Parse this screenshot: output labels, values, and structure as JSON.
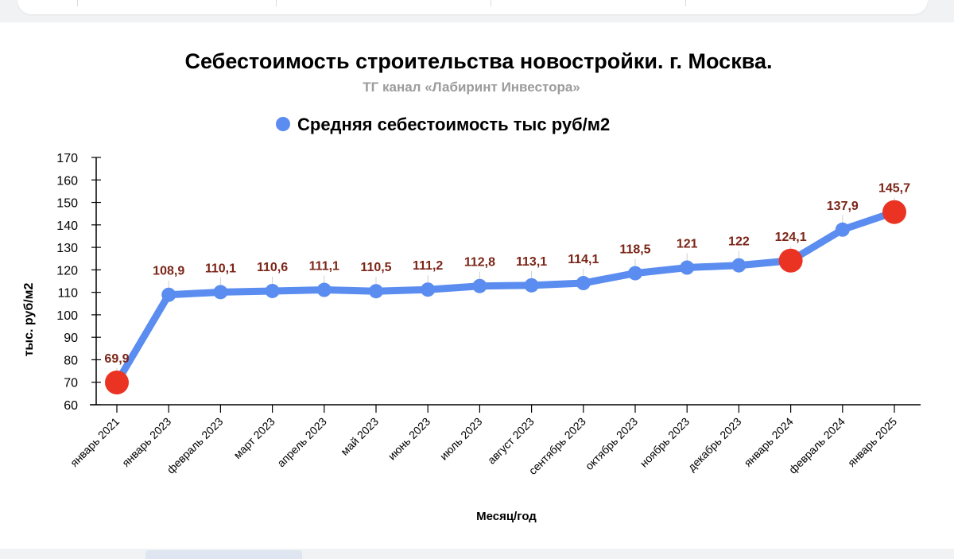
{
  "chart_data": {
    "type": "line",
    "title": "Себестоимость строительства новостройки. г. Москва.",
    "subtitle": "ТГ канал «Лабиринт Инвестора»",
    "xlabel": "Месяц/год",
    "ylabel": "тыс. руб/м2",
    "ylim": [
      60,
      170
    ],
    "y_ticks": [
      60,
      70,
      80,
      90,
      100,
      110,
      120,
      130,
      140,
      150,
      160,
      170
    ],
    "grid": false,
    "legend_position": "top",
    "categories": [
      "январь 2021",
      "январь 2023",
      "февраль 2023",
      "март 2023",
      "апрель 2023",
      "май 2023",
      "июнь 2023",
      "июль 2023",
      "август 2023",
      "сентябрь 2023",
      "октябрь 2023",
      "ноябрь 2023",
      "декабрь 2023",
      "январь 2024",
      "февраль 2024",
      "январь 2025"
    ],
    "series": [
      {
        "name": "Средняя себестоимость тыс руб/м2",
        "values": [
          69.9,
          108.9,
          110.1,
          110.6,
          111.1,
          110.5,
          111.2,
          112.8,
          113.1,
          114.1,
          118.5,
          121,
          122,
          124.1,
          137.9,
          145.7
        ],
        "labels": [
          "69,9",
          "108,9",
          "110,1",
          "110,6",
          "111,1",
          "110,5",
          "111,2",
          "112,8",
          "113,1",
          "114,1",
          "118,5",
          "121",
          "122",
          "124,1",
          "137,9",
          "145,7"
        ],
        "highlighted_points": [
          "январь 2021",
          "январь 2024",
          "январь 2025"
        ]
      }
    ],
    "colors": {
      "line": "#5b8df0",
      "highlight": "#ea3323",
      "label": "#7b2517",
      "axis": "#000000",
      "subtitle": "#9b9b9b"
    }
  }
}
